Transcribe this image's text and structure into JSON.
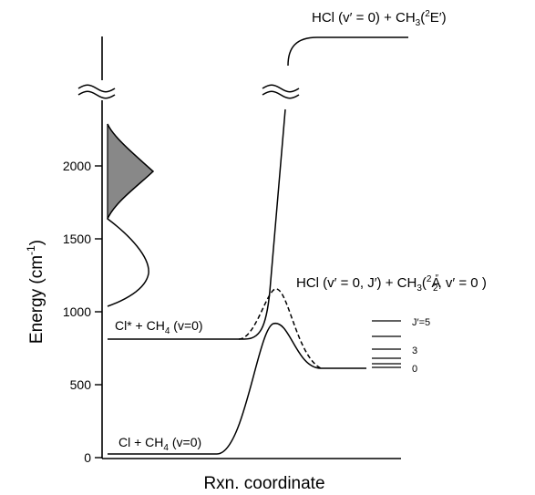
{
  "axes": {
    "ylabel_main": "Energy (cm",
    "ylabel_sup": "-1",
    "ylabel_close": ")",
    "xlabel": "Rxn. coordinate",
    "yticks": [
      "0",
      "500",
      "1000",
      "1500",
      "2000"
    ]
  },
  "labels": {
    "upper_product": {
      "a": "HCl (v′ = 0) + CH",
      "sub": "3",
      "b": "(",
      "sup": "2",
      "c": "E′)"
    },
    "lower_product": {
      "a": "HCl (v′ = 0, J′) + CH",
      "sub": "3",
      "b": "(",
      "sup": "2",
      "c": "A",
      "sup2": "″",
      "sub2": "2",
      "d": ", v′ = 0 )"
    },
    "excited_reactant": {
      "a": "Cl* + CH",
      "sub": "4",
      "b": " (v=0)"
    },
    "ground_reactant": {
      "a": "Cl + CH",
      "sub": "4",
      "b": " (v=0)"
    },
    "j_levels": [
      "J′=5",
      "3",
      "0"
    ]
  },
  "colors": {
    "line": "#000000",
    "fill": "#888888"
  }
}
